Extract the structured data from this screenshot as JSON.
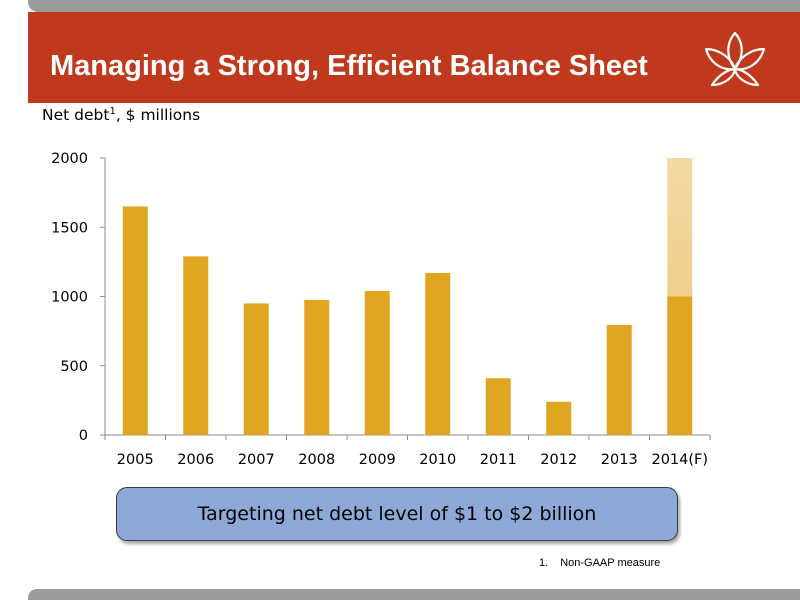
{
  "header": {
    "title": "Managing a Strong, Efficient Balance Sheet",
    "logo_icon": "lotus-flower-icon",
    "bar_color": "#c0391d"
  },
  "chart_label": {
    "text": "Net debt",
    "superscript": "1",
    "suffix": ", $ millions"
  },
  "chart_data": {
    "type": "bar",
    "categories": [
      "2005",
      "2006",
      "2007",
      "2008",
      "2009",
      "2010",
      "2011",
      "2012",
      "2013",
      "2014(F)"
    ],
    "values": [
      1650,
      1290,
      950,
      975,
      1040,
      1170,
      410,
      240,
      795,
      1000
    ],
    "forecast_range": {
      "category": "2014(F)",
      "low": 1000,
      "high": 2000
    },
    "ylim": [
      0,
      2000
    ],
    "yticks": [
      0,
      500,
      1000,
      1500,
      2000
    ],
    "grid": false,
    "bar_color": "#e0a521",
    "range_color": "#f3d9a4"
  },
  "callout": {
    "text": "Targeting net debt level of $1 to $2 billion",
    "color": "#8ea9d8"
  },
  "footnote": {
    "number": "1.",
    "text": "Non-GAAP measure"
  }
}
